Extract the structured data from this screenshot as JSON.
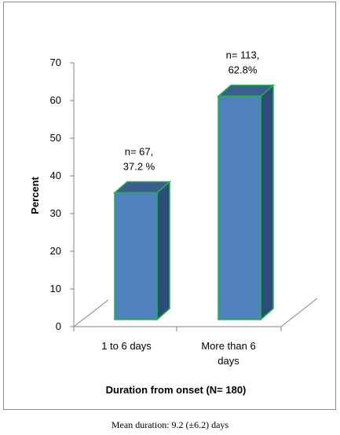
{
  "chart_data": {
    "type": "bar",
    "style": "3d-column",
    "categories": [
      "1 to 6 days",
      "More than 6 days"
    ],
    "category_label_lines": [
      [
        "1 to 6 days"
      ],
      [
        "More than 6",
        "days"
      ]
    ],
    "values": [
      37.2,
      62.8
    ],
    "data_labels": [
      [
        "n= 67,",
        "37.2 %"
      ],
      [
        "n= 113,",
        "62.8%"
      ]
    ],
    "xlabel": "Duration from onset (N= 180)",
    "ylabel": "Percent",
    "ylim": [
      0,
      70
    ],
    "yticks": [
      0,
      10,
      20,
      30,
      40,
      50,
      60,
      70
    ],
    "grid": false,
    "colors": {
      "front": "#4f81bd",
      "side": "#2c4d75",
      "top": "#3a5f8f",
      "edge": "#22b14c"
    }
  },
  "caption": "Mean duration: 9.2 (±6.2) days"
}
